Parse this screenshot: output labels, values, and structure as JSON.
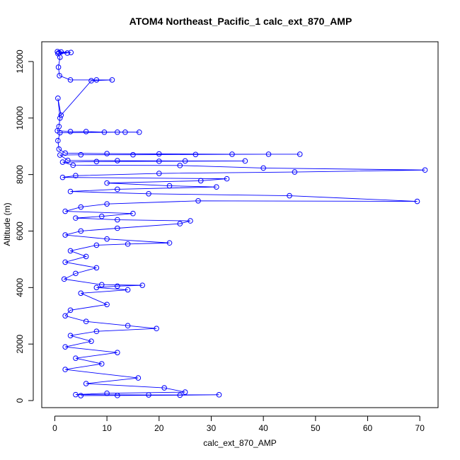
{
  "chart_data": {
    "type": "line",
    "title": "ATOM4 Northeast_Pacific_1 calc_ext_870_AMP",
    "xlabel": "calc_ext_870_AMP",
    "ylabel": "Altitude (m)",
    "xlim": [
      -2.5,
      73.5
    ],
    "ylim": [
      -250,
      12700
    ],
    "xticks": [
      0,
      10,
      20,
      30,
      40,
      50,
      60,
      70
    ],
    "yticks": [
      0,
      2000,
      4000,
      6000,
      8000,
      10000,
      12000
    ],
    "grid": false,
    "legend": "none",
    "markers": "open-circle",
    "color": "#0000ff",
    "series": [
      {
        "points": [
          [
            0.5,
            12350
          ],
          [
            1.2,
            12340
          ],
          [
            3.1,
            12320
          ],
          [
            0.8,
            12310
          ],
          [
            2.4,
            12300
          ],
          [
            0.6,
            12280
          ],
          [
            1.0,
            12150
          ],
          [
            0.7,
            11800
          ],
          [
            0.9,
            11500
          ],
          [
            3.0,
            11350
          ],
          [
            8.0,
            11350
          ],
          [
            11.0,
            11350
          ],
          [
            7.0,
            11320
          ],
          [
            1.2,
            10100
          ],
          [
            0.6,
            10700
          ],
          [
            1.0,
            10000
          ],
          [
            0.8,
            9700
          ],
          [
            0.5,
            9550
          ],
          [
            3.0,
            9520
          ],
          [
            6.0,
            9520
          ],
          [
            9.5,
            9500
          ],
          [
            13.5,
            9500
          ],
          [
            16.2,
            9500
          ],
          [
            12.0,
            9500
          ],
          [
            1.0,
            9480
          ],
          [
            0.6,
            9200
          ],
          [
            0.8,
            8900
          ],
          [
            2.0,
            8760
          ],
          [
            10.0,
            8740
          ],
          [
            20.0,
            8730
          ],
          [
            34.0,
            8720
          ],
          [
            47.0,
            8720
          ],
          [
            41.0,
            8720
          ],
          [
            27.0,
            8710
          ],
          [
            15.0,
            8700
          ],
          [
            5.0,
            8700
          ],
          [
            1.0,
            8690
          ],
          [
            2.5,
            8500
          ],
          [
            12.0,
            8490
          ],
          [
            25.0,
            8480
          ],
          [
            36.5,
            8480
          ],
          [
            20.0,
            8470
          ],
          [
            8.0,
            8460
          ],
          [
            1.5,
            8440
          ],
          [
            3.5,
            8330
          ],
          [
            24.0,
            8320
          ],
          [
            40.0,
            8230
          ],
          [
            71.0,
            8160
          ],
          [
            46.0,
            8090
          ],
          [
            20.0,
            8040
          ],
          [
            4.0,
            7960
          ],
          [
            1.5,
            7900
          ],
          [
            33.0,
            7850
          ],
          [
            28.0,
            7780
          ],
          [
            10.0,
            7700
          ],
          [
            22.0,
            7600
          ],
          [
            31.0,
            7560
          ],
          [
            12.0,
            7480
          ],
          [
            3.0,
            7400
          ],
          [
            18.0,
            7320
          ],
          [
            45.0,
            7250
          ],
          [
            69.5,
            7050
          ],
          [
            27.5,
            7070
          ],
          [
            10.0,
            6960
          ],
          [
            5.0,
            6850
          ],
          [
            2.0,
            6700
          ],
          [
            15.0,
            6620
          ],
          [
            9.0,
            6520
          ],
          [
            4.0,
            6460
          ],
          [
            12.0,
            6400
          ],
          [
            26.0,
            6360
          ],
          [
            24.0,
            6260
          ],
          [
            12.0,
            6100
          ],
          [
            5.0,
            6000
          ],
          [
            2.0,
            5860
          ],
          [
            10.0,
            5720
          ],
          [
            22.0,
            5580
          ],
          [
            14.0,
            5540
          ],
          [
            8.0,
            5500
          ],
          [
            3.0,
            5300
          ],
          [
            6.0,
            5100
          ],
          [
            2.0,
            4900
          ],
          [
            8.0,
            4700
          ],
          [
            4.0,
            4500
          ],
          [
            1.8,
            4300
          ],
          [
            9.0,
            4100
          ],
          [
            16.8,
            4080
          ],
          [
            12.0,
            4050
          ],
          [
            8.0,
            4000
          ],
          [
            14.0,
            3920
          ],
          [
            5.0,
            3800
          ],
          [
            10.0,
            3400
          ],
          [
            3.0,
            3200
          ],
          [
            2.0,
            3000
          ],
          [
            6.0,
            2800
          ],
          [
            14.0,
            2650
          ],
          [
            19.5,
            2550
          ],
          [
            8.0,
            2450
          ],
          [
            3.0,
            2300
          ],
          [
            7.0,
            2100
          ],
          [
            2.0,
            1900
          ],
          [
            12.0,
            1700
          ],
          [
            4.0,
            1500
          ],
          [
            9.0,
            1300
          ],
          [
            2.0,
            1100
          ],
          [
            16.0,
            800
          ],
          [
            6.0,
            600
          ],
          [
            21.0,
            450
          ],
          [
            25.0,
            300
          ],
          [
            10.0,
            260
          ],
          [
            4.0,
            210
          ],
          [
            18.0,
            200
          ],
          [
            31.5,
            205
          ],
          [
            24.0,
            190
          ],
          [
            12.0,
            180
          ],
          [
            5.0,
            175
          ]
        ]
      }
    ]
  }
}
